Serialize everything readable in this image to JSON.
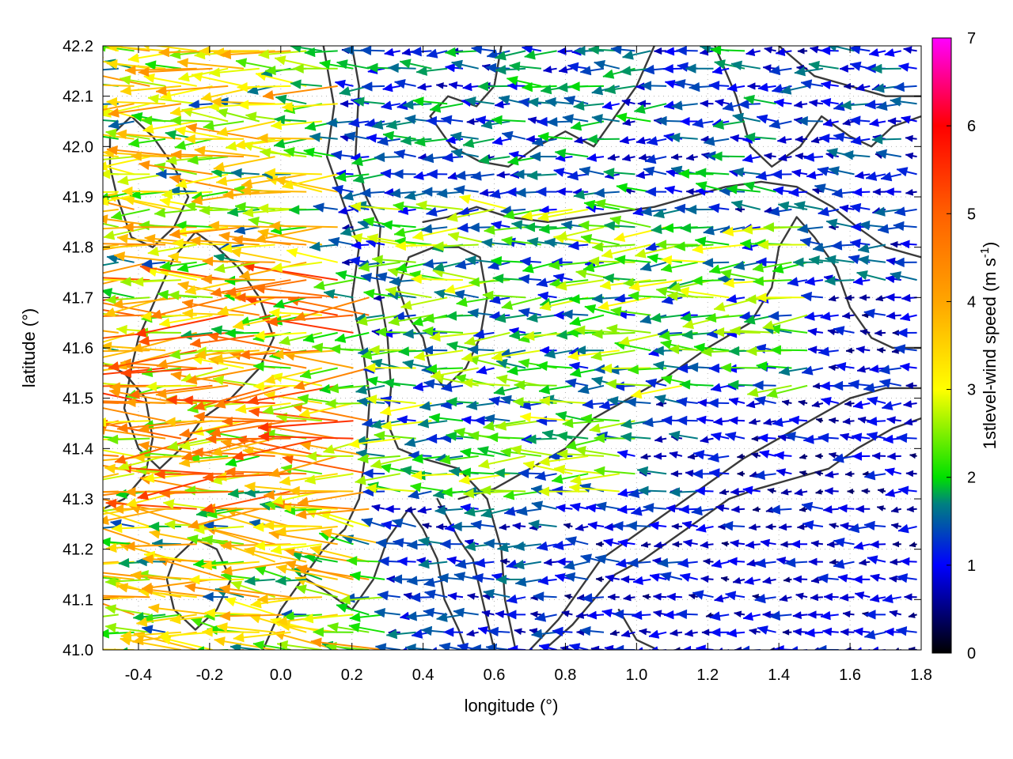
{
  "chart_data": {
    "type": "vector-field",
    "title": "",
    "xlabel": "longitude (°)",
    "ylabel": "latitude (°)",
    "xlim": [
      -0.5,
      1.8
    ],
    "ylim": [
      41.0,
      42.2
    ],
    "xticks": [
      "-0.4",
      "-0.2",
      "0.0",
      "0.2",
      "0.4",
      "0.6",
      "0.8",
      "1.0",
      "1.2",
      "1.4",
      "1.6",
      "1.8"
    ],
    "xtick_values": [
      -0.4,
      -0.2,
      0.0,
      0.2,
      0.4,
      0.6,
      0.8,
      1.0,
      1.2,
      1.4,
      1.6,
      1.8
    ],
    "yticks": [
      "41.0",
      "41.1",
      "41.2",
      "41.3",
      "41.4",
      "41.5",
      "41.6",
      "41.7",
      "41.8",
      "41.9",
      "42.0",
      "42.1",
      "42.2"
    ],
    "ytick_values": [
      41.0,
      41.1,
      41.2,
      41.3,
      41.4,
      41.5,
      41.6,
      41.7,
      41.8,
      41.9,
      42.0,
      42.1,
      42.2
    ],
    "grid": true,
    "colorbar": {
      "label_prefix": "1stlevel-wind speed (m s",
      "label_exponent": "-1",
      "label_suffix": ")",
      "range": [
        0,
        7
      ],
      "ticks": [
        "0",
        "1",
        "2",
        "3",
        "4",
        "5",
        "6",
        "7"
      ],
      "tick_values": [
        0,
        1,
        2,
        3,
        4,
        5,
        6,
        7
      ],
      "colormap": [
        {
          "v": 0.0,
          "c": "#000000"
        },
        {
          "v": 1.0,
          "c": "#0000ff"
        },
        {
          "v": 1.7,
          "c": "#008080"
        },
        {
          "v": 2.0,
          "c": "#00e000"
        },
        {
          "v": 3.0,
          "c": "#ffff00"
        },
        {
          "v": 4.0,
          "c": "#ffa500"
        },
        {
          "v": 5.0,
          "c": "#ff6000"
        },
        {
          "v": 6.0,
          "c": "#ff0000"
        },
        {
          "v": 7.0,
          "c": "#ff00ff"
        }
      ]
    },
    "vector_grid": {
      "lon_start": -0.5,
      "lon_step": 0.044,
      "lat_start": 41.0,
      "lat_step": 0.035
    },
    "wind_regions": [
      {
        "name": "west-strong",
        "lon": [
          -0.5,
          0.25
        ],
        "lat": [
          41.25,
          41.75
        ],
        "speed": 3.8,
        "u": -1,
        "v": -0.04
      },
      {
        "name": "west-north",
        "lon": [
          -0.5,
          0.2
        ],
        "lat": [
          41.75,
          42.2
        ],
        "speed": 3.0,
        "u": -1,
        "v": 0.02
      },
      {
        "name": "west-south",
        "lon": [
          -0.5,
          0.3
        ],
        "lat": [
          41.0,
          41.25
        ],
        "speed": 3.0,
        "u": -1,
        "v": 0.1
      },
      {
        "name": "central-channel",
        "lon": [
          0.3,
          1.0
        ],
        "lat": [
          41.3,
          41.9
        ],
        "speed": 2.1,
        "u": -1,
        "v": 0.0
      },
      {
        "name": "north-central",
        "lon": [
          0.2,
          1.4
        ],
        "lat": [
          41.9,
          42.2
        ],
        "speed": 1.4,
        "u": -1,
        "v": 0.0
      },
      {
        "name": "east-band",
        "lon": [
          0.8,
          1.5
        ],
        "lat": [
          41.5,
          41.85
        ],
        "speed": 2.2,
        "u": -1,
        "v": -0.03
      },
      {
        "name": "east-calm",
        "lon": [
          1.2,
          1.8
        ],
        "lat": [
          41.0,
          41.7
        ],
        "speed": 0.9,
        "u": -1,
        "v": 0.0
      },
      {
        "name": "southeast-calm",
        "lon": [
          0.8,
          1.8
        ],
        "lat": [
          41.0,
          41.3
        ],
        "speed": 1.0,
        "u": -1,
        "v": 0.0
      }
    ],
    "contours": [
      {
        "name": "contour-1",
        "points": [
          [
            0.2,
            42.2
          ],
          [
            0.22,
            42.12
          ],
          [
            0.21,
            41.98
          ],
          [
            0.24,
            41.9
          ],
          [
            0.28,
            41.84
          ],
          [
            0.27,
            41.74
          ],
          [
            0.3,
            41.62
          ],
          [
            0.31,
            41.52
          ],
          [
            0.3,
            41.45
          ],
          [
            0.33,
            41.4
          ],
          [
            0.4,
            41.38
          ],
          [
            0.5,
            41.36
          ],
          [
            0.58,
            41.3
          ],
          [
            0.62,
            41.2
          ],
          [
            0.63,
            41.1
          ],
          [
            0.66,
            41.0
          ]
        ]
      },
      {
        "name": "contour-2",
        "points": [
          [
            0.12,
            42.2
          ],
          [
            0.15,
            42.08
          ],
          [
            0.13,
            41.98
          ],
          [
            0.18,
            41.88
          ],
          [
            0.22,
            41.8
          ],
          [
            0.2,
            41.7
          ],
          [
            0.23,
            41.6
          ],
          [
            0.25,
            41.5
          ],
          [
            0.24,
            41.4
          ],
          [
            0.22,
            41.3
          ],
          [
            0.18,
            41.24
          ],
          [
            0.12,
            41.2
          ],
          [
            0.06,
            41.14
          ],
          [
            0.0,
            41.08
          ],
          [
            -0.05,
            41.0
          ]
        ]
      },
      {
        "name": "contour-3",
        "points": [
          [
            0.62,
            42.2
          ],
          [
            0.6,
            42.12
          ],
          [
            0.55,
            42.08
          ],
          [
            0.47,
            42.1
          ],
          [
            0.42,
            42.06
          ],
          [
            0.48,
            42.0
          ],
          [
            0.56,
            41.97
          ],
          [
            0.64,
            41.96
          ],
          [
            0.72,
            42.0
          ],
          [
            0.8,
            42.03
          ],
          [
            0.88,
            42.0
          ],
          [
            0.93,
            42.05
          ],
          [
            1.0,
            42.12
          ],
          [
            1.05,
            42.2
          ]
        ]
      },
      {
        "name": "contour-4",
        "points": [
          [
            0.4,
            41.85
          ],
          [
            0.47,
            41.86
          ],
          [
            0.55,
            41.88
          ],
          [
            0.64,
            41.86
          ],
          [
            0.75,
            41.85
          ],
          [
            0.85,
            41.86
          ],
          [
            0.95,
            41.87
          ],
          [
            1.05,
            41.88
          ],
          [
            1.15,
            41.9
          ],
          [
            1.25,
            41.92
          ],
          [
            1.35,
            41.93
          ],
          [
            1.45,
            41.92
          ],
          [
            1.55,
            41.88
          ],
          [
            1.62,
            41.84
          ],
          [
            1.7,
            41.8
          ],
          [
            1.8,
            41.78
          ]
        ]
      },
      {
        "name": "contour-5",
        "points": [
          [
            0.5,
            41.3
          ],
          [
            0.6,
            41.32
          ],
          [
            0.7,
            41.36
          ],
          [
            0.8,
            41.4
          ],
          [
            0.88,
            41.46
          ],
          [
            0.98,
            41.5
          ],
          [
            1.08,
            41.54
          ],
          [
            1.2,
            41.6
          ],
          [
            1.32,
            41.65
          ],
          [
            1.38,
            41.72
          ],
          [
            1.4,
            41.8
          ],
          [
            1.45,
            41.86
          ],
          [
            1.5,
            41.82
          ],
          [
            1.56,
            41.76
          ],
          [
            1.6,
            41.68
          ],
          [
            1.66,
            41.62
          ],
          [
            1.72,
            41.6
          ],
          [
            1.8,
            41.6
          ]
        ]
      },
      {
        "name": "contour-6",
        "points": [
          [
            0.7,
            41.0
          ],
          [
            0.78,
            41.06
          ],
          [
            0.84,
            41.12
          ],
          [
            0.9,
            41.18
          ],
          [
            0.98,
            41.22
          ],
          [
            1.06,
            41.26
          ],
          [
            1.14,
            41.3
          ],
          [
            1.22,
            41.34
          ],
          [
            1.3,
            41.38
          ],
          [
            1.4,
            41.42
          ],
          [
            1.5,
            41.46
          ],
          [
            1.6,
            41.5
          ],
          [
            1.7,
            41.52
          ],
          [
            1.8,
            41.52
          ]
        ]
      },
      {
        "name": "contour-7",
        "points": [
          [
            0.74,
            41.0
          ],
          [
            0.82,
            41.05
          ],
          [
            0.88,
            41.1
          ],
          [
            0.94,
            41.15
          ],
          [
            1.02,
            41.18
          ],
          [
            1.1,
            41.22
          ],
          [
            1.18,
            41.26
          ],
          [
            1.26,
            41.3
          ],
          [
            1.34,
            41.32
          ],
          [
            1.44,
            41.34
          ],
          [
            1.54,
            41.36
          ],
          [
            1.62,
            41.4
          ],
          [
            1.72,
            41.44
          ],
          [
            1.8,
            41.46
          ]
        ]
      },
      {
        "name": "contour-8",
        "points": [
          [
            -0.4,
            41.62
          ],
          [
            -0.35,
            41.7
          ],
          [
            -0.3,
            41.78
          ],
          [
            -0.24,
            41.83
          ],
          [
            -0.18,
            41.8
          ],
          [
            -0.12,
            41.76
          ],
          [
            -0.06,
            41.7
          ],
          [
            -0.02,
            41.62
          ],
          [
            -0.06,
            41.56
          ],
          [
            -0.14,
            41.5
          ],
          [
            -0.22,
            41.46
          ],
          [
            -0.28,
            41.4
          ],
          [
            -0.34,
            41.36
          ],
          [
            -0.4,
            41.4
          ],
          [
            -0.44,
            41.48
          ],
          [
            -0.42,
            41.56
          ],
          [
            -0.4,
            41.62
          ]
        ]
      },
      {
        "name": "contour-9",
        "points": [
          [
            -0.5,
            41.57
          ],
          [
            -0.44,
            41.55
          ],
          [
            -0.38,
            41.5
          ],
          [
            -0.36,
            41.42
          ],
          [
            -0.38,
            41.35
          ],
          [
            -0.44,
            41.3
          ],
          [
            -0.5,
            41.28
          ]
        ]
      },
      {
        "name": "contour-10",
        "points": [
          [
            -0.48,
            42.02
          ],
          [
            -0.42,
            42.06
          ],
          [
            -0.36,
            42.02
          ],
          [
            -0.3,
            41.96
          ],
          [
            -0.26,
            41.9
          ],
          [
            -0.3,
            41.84
          ],
          [
            -0.36,
            41.8
          ],
          [
            -0.42,
            41.82
          ],
          [
            -0.46,
            41.9
          ],
          [
            -0.48,
            41.96
          ],
          [
            -0.48,
            42.02
          ]
        ]
      },
      {
        "name": "contour-11",
        "points": [
          [
            0.05,
            41.15
          ],
          [
            0.12,
            41.12
          ],
          [
            0.2,
            41.08
          ],
          [
            0.26,
            41.14
          ],
          [
            0.3,
            41.22
          ],
          [
            0.36,
            41.28
          ],
          [
            0.4,
            41.24
          ],
          [
            0.44,
            41.18
          ],
          [
            0.46,
            41.1
          ],
          [
            0.5,
            41.04
          ],
          [
            0.52,
            41.0
          ]
        ]
      },
      {
        "name": "contour-12",
        "points": [
          [
            1.22,
            42.2
          ],
          [
            1.28,
            42.1
          ],
          [
            1.32,
            42.0
          ],
          [
            1.38,
            41.96
          ],
          [
            1.46,
            42.0
          ],
          [
            1.52,
            42.06
          ],
          [
            1.6,
            42.02
          ],
          [
            1.66,
            42.0
          ],
          [
            1.72,
            42.04
          ],
          [
            1.8,
            42.06
          ]
        ]
      },
      {
        "name": "contour-13",
        "points": [
          [
            1.4,
            42.2
          ],
          [
            1.5,
            42.14
          ],
          [
            1.6,
            42.12
          ],
          [
            1.7,
            42.1
          ],
          [
            1.8,
            42.1
          ]
        ]
      },
      {
        "name": "contour-14",
        "points": [
          [
            0.33,
            41.72
          ],
          [
            0.36,
            41.66
          ],
          [
            0.4,
            41.62
          ],
          [
            0.42,
            41.56
          ],
          [
            0.46,
            41.52
          ],
          [
            0.52,
            41.56
          ],
          [
            0.56,
            41.62
          ],
          [
            0.58,
            41.7
          ],
          [
            0.56,
            41.78
          ],
          [
            0.5,
            41.8
          ],
          [
            0.43,
            41.8
          ],
          [
            0.36,
            41.78
          ],
          [
            0.33,
            41.72
          ]
        ]
      },
      {
        "name": "contour-15",
        "points": [
          [
            -0.3,
            41.18
          ],
          [
            -0.24,
            41.22
          ],
          [
            -0.18,
            41.2
          ],
          [
            -0.14,
            41.14
          ],
          [
            -0.18,
            41.08
          ],
          [
            -0.24,
            41.04
          ],
          [
            -0.3,
            41.08
          ],
          [
            -0.32,
            41.14
          ],
          [
            -0.3,
            41.18
          ]
        ]
      },
      {
        "name": "contour-16",
        "points": [
          [
            0.95,
            41.08
          ],
          [
            1.0,
            41.02
          ],
          [
            1.06,
            41.0
          ]
        ]
      },
      {
        "name": "contour-17",
        "points": [
          [
            0.44,
            41.3
          ],
          [
            0.47,
            41.26
          ],
          [
            0.5,
            41.22
          ],
          [
            0.54,
            41.18
          ],
          [
            0.56,
            41.12
          ],
          [
            0.58,
            41.06
          ],
          [
            0.6,
            41.0
          ]
        ]
      }
    ]
  }
}
